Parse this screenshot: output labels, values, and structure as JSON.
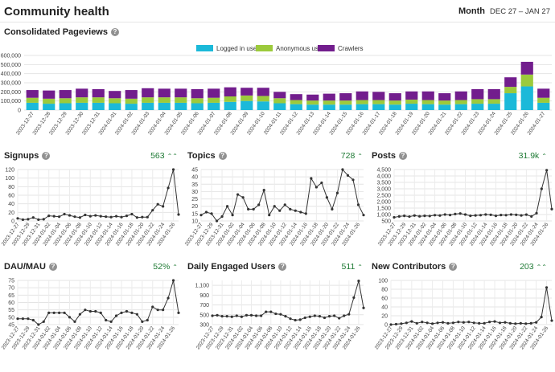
{
  "header": {
    "title": "Community health",
    "period_label": "Month",
    "date_range": "DEC 27 – JAN 27",
    "chevron_icon": "chevron-down-icon"
  },
  "colors": {
    "logged_in": "#1bb9d9",
    "anonymous": "#9cca3c",
    "crawlers": "#721d8d",
    "line": "#333333",
    "grid": "#e4e4e4",
    "trend_up": "#1e7a34"
  },
  "date_labels": [
    "2023-12-27",
    "2023-12-28",
    "2023-12-29",
    "2023-12-30",
    "2023-12-31",
    "2024-01-01",
    "2024-01-02",
    "2024-01-03",
    "2024-01-04",
    "2024-01-05",
    "2024-01-06",
    "2024-01-07",
    "2024-01-08",
    "2024-01-09",
    "2024-01-10",
    "2024-01-11",
    "2024-01-12",
    "2024-01-13",
    "2024-01-14",
    "2024-01-15",
    "2024-01-16",
    "2024-01-17",
    "2024-01-18",
    "2024-01-19",
    "2024-01-20",
    "2024-01-21",
    "2024-01-22",
    "2024-01-23",
    "2024-01-24",
    "2024-01-25",
    "2024-01-26",
    "2024-01-27"
  ],
  "chart_data": [
    {
      "id": "pageviews",
      "type": "bar",
      "stacked": true,
      "title": "Consolidated Pageviews",
      "ylim": [
        0,
        600000
      ],
      "yticks": [
        "0",
        "100,000",
        "200,000",
        "300,000",
        "400,000",
        "500,000",
        "600,000"
      ],
      "series": [
        {
          "name": "Logged in users",
          "values": [
            80000,
            70000,
            75000,
            80000,
            80000,
            75000,
            70000,
            80000,
            80000,
            80000,
            75000,
            80000,
            90000,
            100000,
            95000,
            75000,
            65000,
            60000,
            60000,
            60000,
            65000,
            65000,
            60000,
            70000,
            65000,
            60000,
            65000,
            70000,
            70000,
            185000,
            260000,
            80000
          ]
        },
        {
          "name": "Anonymous users",
          "values": [
            55000,
            55000,
            55000,
            60000,
            60000,
            55000,
            55000,
            60000,
            60000,
            60000,
            55000,
            55000,
            60000,
            60000,
            60000,
            55000,
            45000,
            45000,
            45000,
            45000,
            45000,
            45000,
            45000,
            45000,
            45000,
            45000,
            45000,
            50000,
            50000,
            70000,
            130000,
            55000
          ]
        },
        {
          "name": "Crawlers",
          "values": [
            85000,
            90000,
            90000,
            95000,
            90000,
            80000,
            95000,
            100000,
            95000,
            95000,
            100000,
            100000,
            100000,
            85000,
            90000,
            70000,
            65000,
            65000,
            75000,
            80000,
            95000,
            90000,
            80000,
            90000,
            95000,
            80000,
            95000,
            110000,
            110000,
            105000,
            140000,
            100000
          ]
        }
      ]
    },
    {
      "id": "signups",
      "type": "line",
      "title": "Signups",
      "trend_value": "563",
      "trend_icon": "double-chevron-up-icon",
      "ylim": [
        0,
        120
      ],
      "yticks": [
        "0",
        "20",
        "40",
        "60",
        "80",
        "100",
        "120"
      ],
      "values": [
        6,
        3,
        4,
        8,
        3,
        4,
        12,
        11,
        10,
        16,
        13,
        10,
        8,
        14,
        11,
        13,
        11,
        10,
        9,
        11,
        9,
        12,
        16,
        8,
        9,
        9,
        25,
        39,
        34,
        77,
        120,
        15
      ]
    },
    {
      "id": "topics",
      "type": "line",
      "title": "Topics",
      "trend_value": "728",
      "trend_icon": "chevron-up-icon",
      "ylim": [
        10,
        45
      ],
      "yticks": [
        "10",
        "15",
        "20",
        "25",
        "30",
        "35",
        "40",
        "45"
      ],
      "values": [
        14,
        16,
        15,
        10,
        13,
        20,
        14,
        28,
        26,
        18,
        18,
        21,
        31,
        14,
        20,
        17,
        21,
        18,
        17,
        16,
        15,
        39,
        33,
        36,
        26,
        18,
        29,
        45,
        41,
        38,
        21,
        14
      ]
    },
    {
      "id": "posts",
      "type": "line",
      "title": "Posts",
      "trend_value": "31.9k",
      "trend_icon": "chevron-up-icon",
      "ylim": [
        500,
        4500
      ],
      "yticks": [
        "500",
        "1,000",
        "1,500",
        "2,000",
        "2,500",
        "3,000",
        "3,500",
        "4,000",
        "4,500"
      ],
      "values": [
        780,
        850,
        900,
        840,
        920,
        860,
        900,
        880,
        950,
        920,
        1000,
        960,
        1040,
        1080,
        1000,
        900,
        930,
        950,
        1000,
        980,
        900,
        960,
        950,
        1000,
        980,
        930,
        990,
        850,
        1100,
        3000,
        4450,
        1420
      ]
    },
    {
      "id": "dau_mau",
      "type": "line",
      "title": "DAU/MAU",
      "trend_value": "52%",
      "trend_icon": "chevron-up-icon",
      "ylim": [
        45,
        75
      ],
      "yticks": [
        "45",
        "50",
        "55",
        "60",
        "65",
        "70",
        "75"
      ],
      "values": [
        49,
        49,
        49,
        48,
        45,
        47,
        53,
        53,
        53,
        53,
        50,
        47,
        52,
        55,
        54,
        54,
        53,
        48,
        47,
        51,
        53,
        54,
        53,
        52,
        47,
        48,
        57,
        55,
        55,
        63,
        75,
        53
      ]
    },
    {
      "id": "engaged_users",
      "type": "line",
      "title": "Daily Engaged Users",
      "trend_value": "511",
      "trend_icon": "chevron-up-icon",
      "ylim": [
        300,
        1200
      ],
      "yticks": [
        "300",
        "500",
        "700",
        "900",
        "1,100"
      ],
      "values": [
        480,
        490,
        470,
        470,
        460,
        480,
        460,
        490,
        490,
        480,
        480,
        560,
        560,
        520,
        510,
        470,
        420,
        390,
        400,
        440,
        460,
        480,
        470,
        440,
        470,
        480,
        430,
        480,
        510,
        850,
        1190,
        640
      ]
    },
    {
      "id": "new_contributors",
      "type": "line",
      "title": "New Contributors",
      "trend_value": "203",
      "trend_icon": "double-chevron-up-icon",
      "ylim": [
        0,
        100
      ],
      "yticks": [
        "0",
        "20",
        "40",
        "60",
        "80",
        "100"
      ],
      "values": [
        0,
        1,
        2,
        4,
        7,
        3,
        6,
        4,
        2,
        4,
        5,
        3,
        4,
        6,
        5,
        6,
        4,
        3,
        3,
        6,
        7,
        4,
        5,
        3,
        2,
        3,
        2,
        3,
        5,
        17,
        84,
        9
      ]
    }
  ]
}
